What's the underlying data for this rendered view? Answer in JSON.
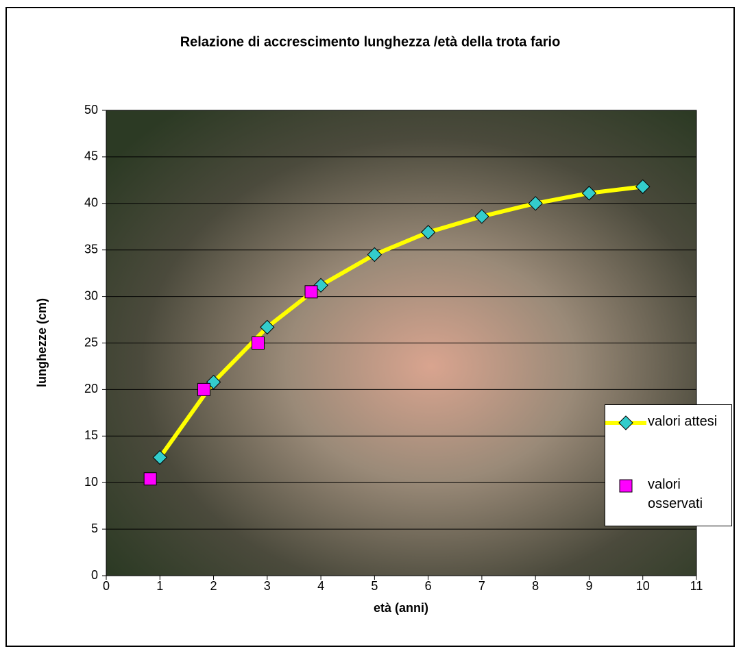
{
  "chart_data": {
    "type": "scatter",
    "title": "Relazione di accrescimento lunghezza /età della trota fario",
    "x_label": "età (anni)",
    "y_label": "lunghezze (cm)",
    "xlim": [
      0,
      11
    ],
    "xticks": [
      0,
      1,
      2,
      3,
      4,
      5,
      6,
      7,
      8,
      9,
      10,
      11
    ],
    "ylim": [
      0,
      50
    ],
    "yticks": [
      0,
      5,
      10,
      15,
      20,
      25,
      30,
      35,
      40,
      45,
      50
    ],
    "grid": true,
    "legend": "right",
    "series": [
      {
        "name": "valori attesi",
        "color": "#ffff00",
        "marker_color": "#33cccc",
        "marker": "diamond",
        "line": true,
        "x": [
          1,
          2,
          3,
          4,
          5,
          6,
          7,
          8,
          9,
          10
        ],
        "values": [
          12.7,
          20.8,
          26.7,
          31.2,
          34.5,
          36.9,
          38.6,
          40.0,
          41.1,
          41.8
        ]
      },
      {
        "name": "valori osservati",
        "color": "#ff00ff",
        "marker_color": "#ff00ff",
        "marker": "square",
        "line": false,
        "x": [
          0.82,
          1.82,
          2.83,
          3.82
        ],
        "values": [
          10.4,
          20.0,
          25.0,
          30.5
        ]
      }
    ]
  }
}
